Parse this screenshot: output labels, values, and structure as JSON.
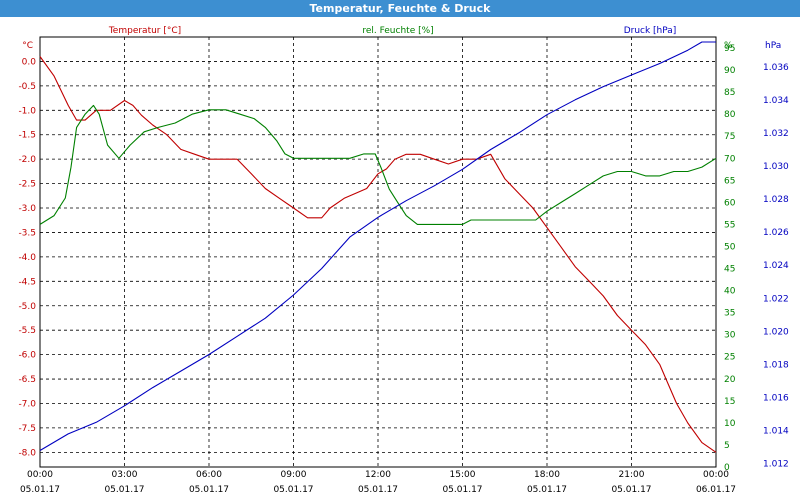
{
  "window": {
    "title": "Temperatur, Feuchte & Druck"
  },
  "chart_data": {
    "type": "line",
    "title": "Temperatur, Feuchte & Druck",
    "grid": true,
    "x_ticks": [
      {
        "time": "00:00",
        "date": "05.01.17"
      },
      {
        "time": "03:00",
        "date": "05.01.17"
      },
      {
        "time": "06:00",
        "date": "05.01.17"
      },
      {
        "time": "09:00",
        "date": "05.01.17"
      },
      {
        "time": "12:00",
        "date": "05.01.17"
      },
      {
        "time": "15:00",
        "date": "05.01.17"
      },
      {
        "time": "18:00",
        "date": "05.01.17"
      },
      {
        "time": "21:00",
        "date": "05.01.17"
      },
      {
        "time": "00:00",
        "date": "06.01.17"
      }
    ],
    "x_range_hours": [
      0,
      24
    ],
    "axes": {
      "temperature": {
        "unit": "°C",
        "range": [
          -8.3,
          0.5
        ],
        "ticks": [
          "0.0",
          "-0.5",
          "-1.0",
          "-1.5",
          "-2.0",
          "-2.5",
          "-3.0",
          "-3.5",
          "-4.0",
          "-4.5",
          "-5.0",
          "-5.5",
          "-6.0",
          "-6.5",
          "-7.0",
          "-7.5",
          "-8.0"
        ],
        "tick_values": [
          0,
          -0.5,
          -1,
          -1.5,
          -2,
          -2.5,
          -3,
          -3.5,
          -4,
          -4.5,
          -5,
          -5.5,
          -6,
          -6.5,
          -7,
          -7.5,
          -8
        ]
      },
      "humidity": {
        "unit": "%",
        "range": [
          0,
          97.5
        ],
        "ticks": [
          "95",
          "90",
          "85",
          "80",
          "75",
          "70",
          "65",
          "60",
          "55",
          "50",
          "45",
          "40",
          "35",
          "30",
          "25",
          "20",
          "15",
          "10",
          "5",
          "0"
        ],
        "tick_values": [
          95,
          90,
          85,
          80,
          75,
          70,
          65,
          60,
          55,
          50,
          45,
          40,
          35,
          30,
          25,
          20,
          15,
          10,
          5,
          0
        ]
      },
      "pressure": {
        "unit": "hPa",
        "range": [
          1.0118,
          1.0378
        ],
        "ticks": [
          "1.036",
          "1.034",
          "1.032",
          "1.030",
          "1.028",
          "1.026",
          "1.024",
          "1.022",
          "1.020",
          "1.018",
          "1.016",
          "1.014",
          "1.012"
        ],
        "tick_values": [
          1.036,
          1.034,
          1.032,
          1.03,
          1.028,
          1.026,
          1.024,
          1.022,
          1.02,
          1.018,
          1.016,
          1.014,
          1.012
        ]
      }
    },
    "series": [
      {
        "name": "Temperatur [°C]",
        "axis": "temperature",
        "color": "#c00000",
        "x": [
          0,
          0.5,
          1,
          1.3,
          1.6,
          2,
          2.5,
          3,
          3.3,
          3.6,
          4,
          4.5,
          5,
          5.5,
          6,
          6.5,
          7,
          7.5,
          8,
          8.5,
          9,
          9.5,
          10,
          10.3,
          10.8,
          11.2,
          11.6,
          12,
          12.3,
          12.6,
          13,
          13.5,
          14,
          14.5,
          15,
          15.5,
          16,
          16.5,
          17,
          17.5,
          18,
          18.5,
          19,
          19.5,
          20,
          20.5,
          21,
          21.5,
          22,
          22.3,
          22.6,
          23,
          23.5,
          24
        ],
        "values": [
          0.1,
          -0.3,
          -0.9,
          -1.2,
          -1.2,
          -1.0,
          -1.0,
          -0.8,
          -0.9,
          -1.1,
          -1.3,
          -1.5,
          -1.8,
          -1.9,
          -2.0,
          -2.0,
          -2.0,
          -2.3,
          -2.6,
          -2.8,
          -3.0,
          -3.2,
          -3.2,
          -3.0,
          -2.8,
          -2.7,
          -2.6,
          -2.3,
          -2.2,
          -2.0,
          -1.9,
          -1.9,
          -2.0,
          -2.1,
          -2.0,
          -2.0,
          -1.9,
          -2.4,
          -2.7,
          -3.0,
          -3.4,
          -3.8,
          -4.2,
          -4.5,
          -4.8,
          -5.2,
          -5.5,
          -5.8,
          -6.2,
          -6.6,
          -7.0,
          -7.4,
          -7.8,
          -8.0
        ]
      },
      {
        "name": "rel. Feuchte [%]",
        "axis": "humidity",
        "color": "#008000",
        "x": [
          0,
          0.5,
          0.9,
          1.1,
          1.3,
          1.6,
          1.9,
          2.1,
          2.4,
          2.8,
          3.2,
          3.7,
          4.2,
          4.8,
          5.4,
          6,
          6.6,
          7.1,
          7.6,
          8,
          8.4,
          8.7,
          9,
          9.5,
          10,
          10.5,
          11,
          11.5,
          11.9,
          12.1,
          12.4,
          12.7,
          13,
          13.4,
          13.8,
          14.2,
          14.6,
          15,
          15.3,
          15.6,
          16,
          16.4,
          16.8,
          17.2,
          17.6,
          18,
          18.5,
          19,
          19.5,
          20,
          20.5,
          21,
          21.5,
          22,
          22.5,
          23,
          23.5,
          24
        ],
        "values": [
          55,
          57,
          61,
          68,
          77,
          80,
          82,
          80,
          73,
          70,
          73,
          76,
          77,
          78,
          80,
          81,
          81,
          80,
          79,
          77,
          74,
          71,
          70,
          70,
          70,
          70,
          70,
          71,
          71,
          68,
          63,
          60,
          57,
          55,
          55,
          55,
          55,
          55,
          56,
          56,
          56,
          56,
          56,
          56,
          56,
          58,
          60,
          62,
          64,
          66,
          67,
          67,
          66,
          66,
          67,
          67,
          68,
          70
        ]
      },
      {
        "name": "Druck [hPa]",
        "axis": "pressure",
        "color": "#0000c0",
        "x": [
          0,
          1,
          2,
          3,
          4,
          5,
          6,
          7,
          8,
          9,
          10,
          11,
          12,
          13,
          14,
          15,
          16,
          17,
          18,
          19,
          20,
          21,
          22,
          23,
          23.5,
          24
        ],
        "values": [
          1.0128,
          1.0138,
          1.0145,
          1.0155,
          1.0166,
          1.0176,
          1.0186,
          1.0197,
          1.0208,
          1.0222,
          1.0238,
          1.0257,
          1.0269,
          1.0279,
          1.0288,
          1.0298,
          1.031,
          1.032,
          1.0331,
          1.034,
          1.0348,
          1.0355,
          1.0362,
          1.037,
          1.0375,
          1.0375
        ]
      }
    ]
  }
}
